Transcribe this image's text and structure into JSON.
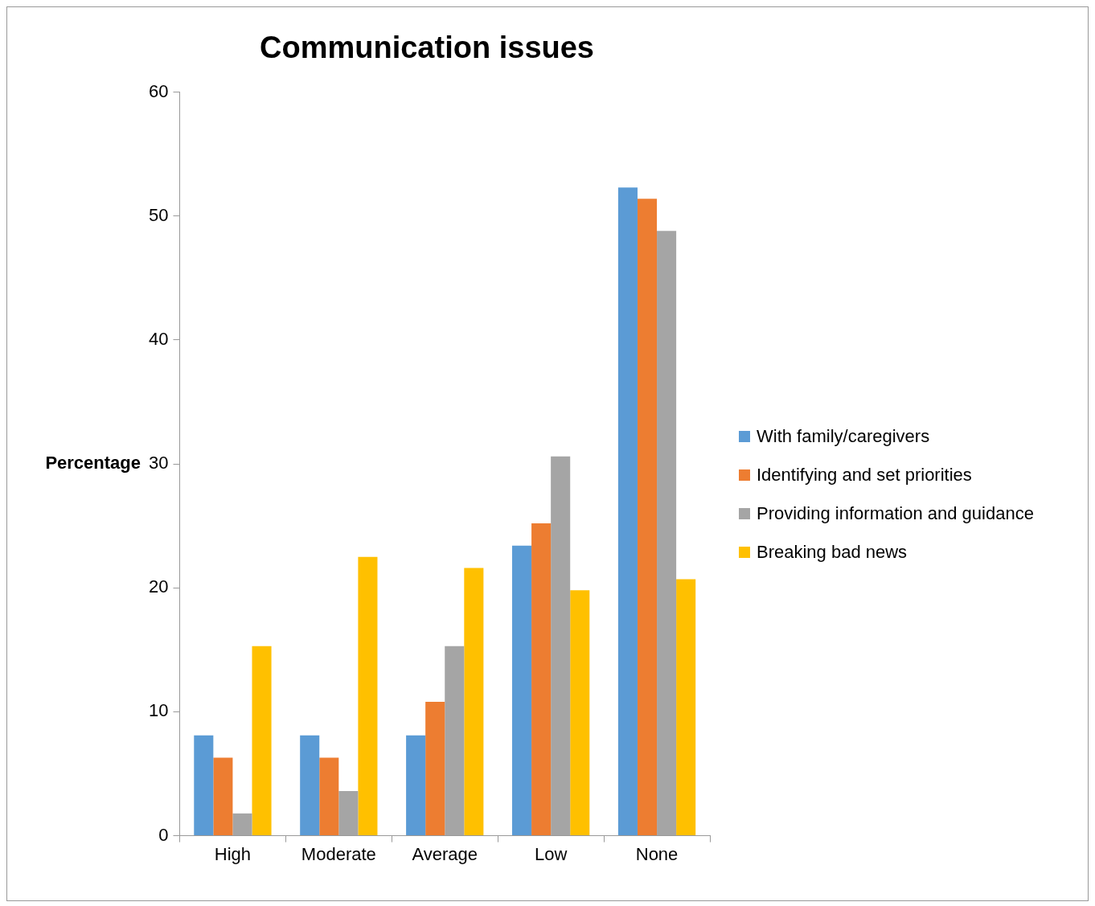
{
  "chart_data": {
    "type": "bar",
    "title": "Communication issues",
    "ylabel": "Percentage",
    "categories": [
      "High",
      "Moderate",
      "Average",
      "Low",
      "None"
    ],
    "series": [
      {
        "name": "With family/caregivers",
        "color": "#5b9bd5",
        "values": [
          8.1,
          8.1,
          8.1,
          23.4,
          52.3
        ]
      },
      {
        "name": "Identifying and set priorities",
        "color": "#ed7d31",
        "values": [
          6.3,
          6.3,
          10.8,
          25.2,
          51.4
        ]
      },
      {
        "name": "Providing information and guidance",
        "color": "#a5a5a5",
        "values": [
          1.8,
          3.6,
          15.3,
          30.6,
          48.8
        ]
      },
      {
        "name": "Breaking bad news",
        "color": "#ffc000",
        "values": [
          15.3,
          22.5,
          21.6,
          19.8,
          20.7
        ]
      }
    ],
    "ylim": [
      0,
      60
    ],
    "yticks": [
      0,
      10,
      20,
      30,
      40,
      50,
      60
    ],
    "grid": false,
    "legend": "right"
  }
}
